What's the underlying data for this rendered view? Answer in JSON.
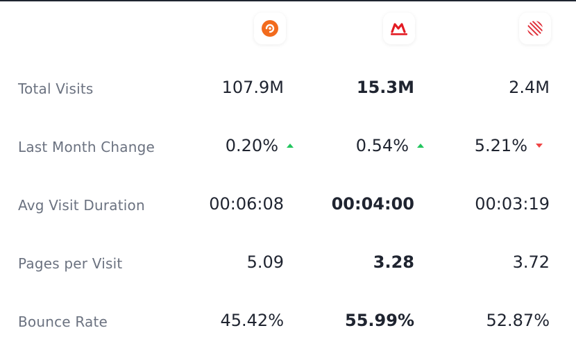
{
  "brands": [
    {
      "icon": "aliexpress-logo-icon",
      "color": "#f26b1d"
    },
    {
      "icon": "megamarket-logo-icon",
      "color": "#e31b23"
    },
    {
      "icon": "striped-circle-logo-icon",
      "color": "#e0303a"
    }
  ],
  "metrics": [
    {
      "label": "Total Visits",
      "values": [
        "107.9M",
        "15.3M",
        "2.4M"
      ]
    },
    {
      "label": "Last Month Change",
      "values": [
        "0.20%",
        "0.54%",
        "5.21%"
      ],
      "trends": [
        "up",
        "up",
        "down"
      ]
    },
    {
      "label": "Avg Visit Duration",
      "values": [
        "00:06:08",
        "00:04:00",
        "00:03:19"
      ]
    },
    {
      "label": "Pages per Visit",
      "values": [
        "5.09",
        "3.28",
        "3.72"
      ]
    },
    {
      "label": "Bounce Rate",
      "values": [
        "45.42%",
        "55.99%",
        "52.87%"
      ]
    }
  ],
  "colors": {
    "trend_up": "#22c55e",
    "trend_down": "#ef4444",
    "text": "#1f2430",
    "label": "#6b7280"
  }
}
